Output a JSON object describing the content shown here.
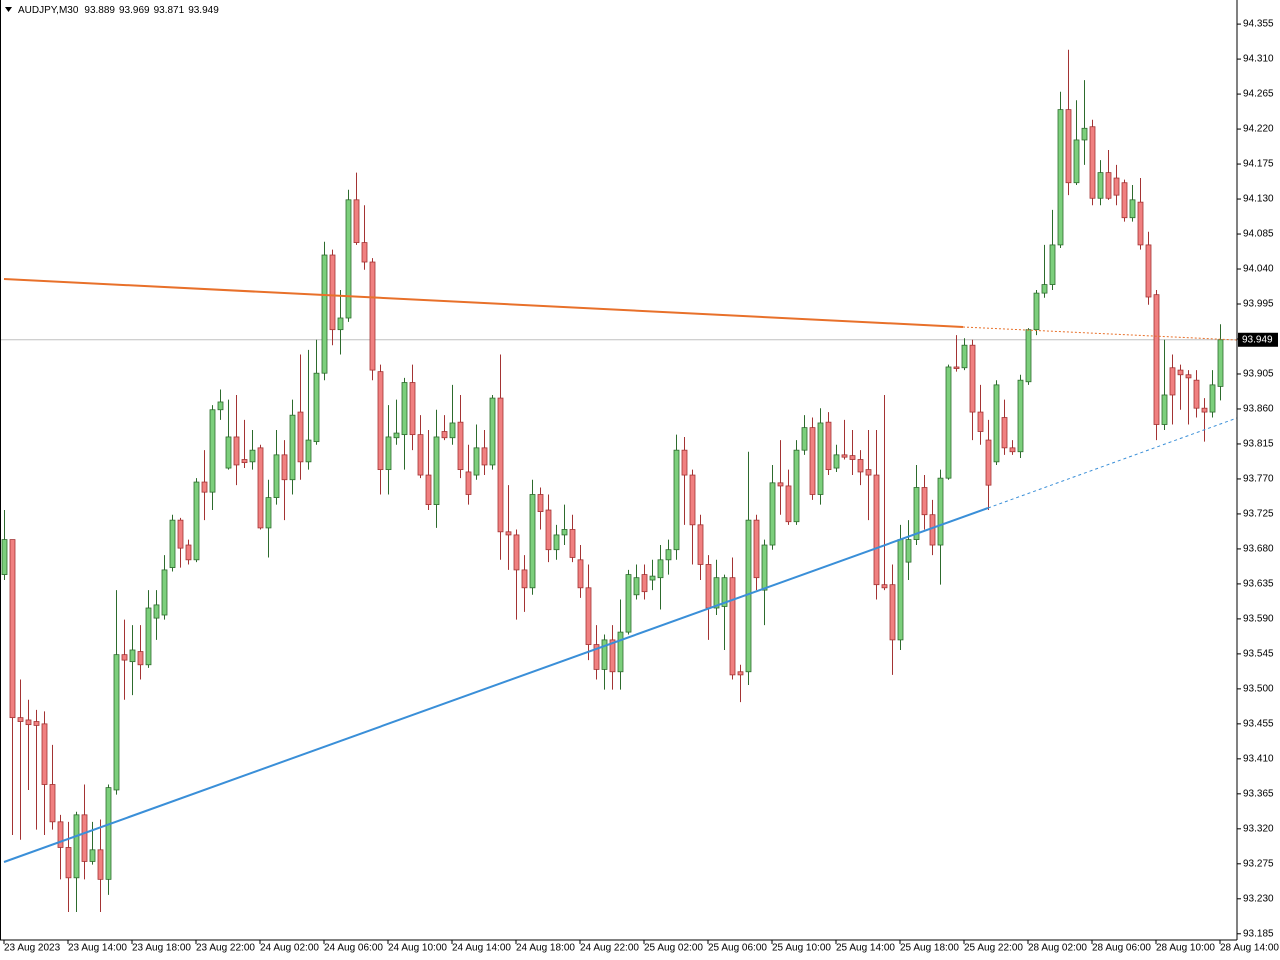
{
  "chart_data": {
    "type": "candlestick",
    "title": "AUDJPY,M30",
    "up_color": "#7ccf7c",
    "down_color": "#f08080",
    "ylim": [
      93.177,
      94.386
    ],
    "yticks": [
      94.355,
      {
        "value": 94.31,
        "label": "94.310"
      },
      94.265,
      {
        "value": 94.22,
        "label": "94.220"
      },
      94.175,
      {
        "value": 94.13,
        "label": "94.130"
      },
      94.085,
      {
        "value": 94.04,
        "label": "94.040"
      },
      93.995,
      {
        "value": 93.95,
        "label": "93.950"
      },
      93.905,
      {
        "value": 93.86,
        "label": "93.860"
      },
      93.815,
      {
        "value": 93.77,
        "label": "93.770"
      },
      93.725,
      {
        "value": 93.68,
        "label": "93.680"
      },
      93.635,
      {
        "value": 93.59,
        "label": "93.590"
      },
      93.545,
      {
        "value": 93.5,
        "label": "93.500"
      },
      93.455,
      {
        "value": 93.41,
        "label": "93.410"
      },
      93.365,
      {
        "value": 93.32,
        "label": "93.320"
      },
      93.275,
      {
        "value": 93.23,
        "label": "93.230"
      },
      93.185
    ],
    "categories": [
      "23 Aug 2023",
      null,
      null,
      null,
      null,
      null,
      null,
      null,
      "23 Aug 14:00",
      null,
      null,
      null,
      null,
      null,
      null,
      null,
      "23 Aug 18:00",
      null,
      null,
      null,
      null,
      null,
      null,
      null,
      "23 Aug 22:00",
      null,
      null,
      null,
      null,
      null,
      null,
      null,
      "24 Aug 02:00",
      null,
      null,
      null,
      null,
      null,
      null,
      null,
      "24 Aug 06:00",
      null,
      null,
      null,
      null,
      null,
      null,
      null,
      "24 Aug 10:00",
      null,
      null,
      null,
      null,
      null,
      null,
      null,
      "24 Aug 14:00",
      null,
      null,
      null,
      null,
      null,
      null,
      null,
      "24 Aug 18:00",
      null,
      null,
      null,
      null,
      null,
      null,
      null,
      "24 Aug 22:00",
      null,
      null,
      null,
      null,
      null,
      null,
      null,
      "25 Aug 02:00",
      null,
      null,
      null,
      null,
      null,
      null,
      null,
      "25 Aug 06:00",
      null,
      null,
      null,
      null,
      null,
      null,
      null,
      "25 Aug 10:00",
      null,
      null,
      null,
      null,
      null,
      null,
      null,
      "25 Aug 14:00",
      null,
      null,
      null,
      null,
      null,
      null,
      null,
      "25 Aug 18:00",
      null,
      null,
      null,
      null,
      null,
      null,
      null,
      "25 Aug 22:00",
      null,
      null,
      null,
      null,
      null,
      null,
      null,
      "28 Aug 02:00",
      null,
      null,
      null,
      null,
      null,
      null,
      null,
      "28 Aug 06:00",
      null,
      null,
      null,
      null,
      null,
      null,
      null,
      "28 Aug 10:00",
      null,
      null,
      null,
      null,
      null,
      null,
      null,
      "28 Aug 14:00"
    ],
    "open": [
      93.647,
      93.692,
      93.463,
      93.46,
      93.458,
      93.455,
      93.377,
      93.329,
      93.296,
      93.257,
      93.338,
      93.278,
      93.293,
      93.255,
      93.37,
      93.544,
      93.535,
      93.548,
      93.531,
      93.591,
      93.595,
      93.656,
      93.717,
      93.685,
      93.666,
      93.766,
      93.753,
      93.859,
      93.784,
      93.824,
      93.795,
      93.792,
      93.81,
      93.707,
      93.746,
      93.801,
      93.769,
      93.856,
      93.792,
      93.818,
      93.906,
      94.058,
      93.962,
      93.977,
      94.129,
      94.074,
      94.049,
      93.908,
      93.782,
      93.823,
      93.827,
      93.894,
      93.827,
      93.775,
      93.737,
      93.831,
      93.823,
      93.843,
      93.779,
      93.775,
      93.81,
      93.788,
      93.874,
      93.702,
      93.698,
      93.653,
      93.63,
      93.75,
      93.73,
      93.679,
      93.698,
      93.705,
      93.666,
      93.63,
      93.557,
      93.525,
      93.563,
      93.522,
      93.573,
      93.621,
      93.647,
      93.64,
      93.643,
      93.666,
      93.679,
      93.807,
      93.775,
      93.711,
      93.66,
      93.604,
      93.606,
      93.643,
      93.522,
      93.522,
      93.717,
      93.627,
      93.685,
      93.765,
      93.761,
      93.715,
      93.807,
      93.836,
      93.75,
      93.843,
      93.784,
      93.801,
      93.8,
      93.795,
      93.782,
      93.775,
      93.634,
      93.634,
      93.563,
      93.663,
      93.692,
      93.759,
      93.724,
      93.685,
      93.771,
      93.914,
      93.913,
      93.942,
      93.856,
      93.82,
      93.792,
      93.849,
      93.81,
      93.805,
      93.895,
      93.962,
      94.009,
      94.02,
      94.071,
      94.245,
      94.151,
      94.206,
      94.223,
      94.131,
      94.164,
      94.157,
      94.151,
      94.106,
      94.126,
      94.071,
      94.007,
      93.84,
      93.913,
      93.91,
      93.904,
      93.897,
      93.861,
      93.856,
      93.889
    ],
    "high": [
      93.73,
      93.692,
      93.512,
      93.486,
      93.473,
      93.471,
      93.428,
      93.338,
      93.329,
      93.342,
      93.377,
      93.329,
      93.332,
      93.377,
      93.627,
      93.589,
      93.582,
      93.582,
      93.627,
      93.627,
      93.672,
      93.724,
      93.72,
      93.692,
      93.771,
      93.807,
      93.865,
      93.885,
      93.872,
      93.878,
      93.846,
      93.833,
      93.814,
      93.769,
      93.833,
      93.82,
      93.872,
      93.93,
      93.936,
      93.949,
      94.075,
      94.065,
      94.013,
      94.142,
      94.164,
      94.122,
      94.054,
      93.917,
      93.865,
      93.872,
      93.9,
      93.917,
      93.852,
      93.833,
      93.859,
      93.852,
      93.891,
      93.878,
      93.814,
      93.84,
      93.833,
      93.878,
      93.93,
      93.762,
      93.705,
      93.672,
      93.769,
      93.759,
      93.75,
      93.711,
      93.737,
      93.724,
      93.685,
      93.66,
      93.582,
      93.57,
      93.582,
      93.615,
      93.653,
      93.66,
      93.66,
      93.666,
      93.685,
      93.692,
      93.827,
      93.824,
      93.782,
      93.724,
      93.672,
      93.666,
      93.647,
      93.669,
      93.531,
      93.805,
      93.724,
      93.692,
      93.788,
      93.82,
      93.782,
      93.82,
      93.852,
      93.849,
      93.861,
      93.856,
      93.814,
      93.846,
      93.833,
      93.807,
      93.833,
      93.833,
      93.878,
      93.66,
      93.711,
      93.717,
      93.788,
      93.775,
      93.743,
      93.782,
      93.917,
      93.955,
      93.951,
      93.949,
      93.891,
      93.846,
      93.897,
      93.872,
      93.82,
      93.904,
      93.964,
      94.013,
      94.071,
      94.116,
      94.268,
      94.322,
      94.257,
      94.283,
      94.232,
      94.18,
      94.193,
      94.174,
      94.155,
      94.148,
      94.157,
      94.088,
      94.013,
      93.949,
      93.93,
      93.917,
      93.91,
      93.91,
      93.874,
      93.91,
      93.969
    ],
    "low": [
      93.64,
      93.312,
      93.306,
      93.37,
      93.319,
      93.312,
      93.319,
      93.255,
      93.213,
      93.213,
      93.255,
      93.274,
      93.213,
      93.235,
      93.364,
      93.486,
      93.492,
      93.512,
      93.527,
      93.563,
      93.589,
      93.651,
      93.656,
      93.66,
      93.663,
      93.717,
      93.73,
      93.846,
      93.782,
      93.762,
      93.784,
      93.782,
      93.705,
      93.669,
      93.737,
      93.717,
      93.75,
      93.769,
      93.782,
      93.814,
      93.897,
      93.942,
      93.93,
      93.972,
      94.071,
      94.039,
      93.897,
      93.75,
      93.75,
      93.814,
      93.782,
      93.807,
      93.771,
      93.73,
      93.707,
      93.82,
      93.814,
      93.771,
      93.737,
      93.769,
      93.775,
      93.782,
      93.666,
      93.653,
      93.589,
      93.599,
      93.621,
      93.705,
      93.663,
      93.666,
      93.685,
      93.663,
      93.617,
      93.537,
      93.512,
      93.499,
      93.499,
      93.499,
      93.57,
      93.615,
      93.615,
      93.627,
      93.602,
      93.647,
      93.666,
      93.711,
      93.66,
      93.64,
      93.563,
      93.595,
      93.55,
      93.512,
      93.483,
      93.505,
      93.627,
      93.582,
      93.679,
      93.724,
      93.711,
      93.711,
      93.801,
      93.743,
      93.737,
      93.775,
      93.779,
      93.795,
      93.775,
      93.762,
      93.717,
      93.615,
      93.627,
      93.518,
      93.55,
      93.64,
      93.685,
      93.705,
      93.672,
      93.634,
      93.769,
      93.908,
      93.91,
      93.82,
      93.814,
      93.73,
      93.788,
      93.801,
      93.801,
      93.797,
      93.891,
      93.955,
      94.003,
      94.013,
      94.067,
      94.135,
      94.148,
      94.174,
      94.122,
      94.122,
      94.129,
      94.122,
      94.101,
      94.101,
      94.065,
      93.994,
      93.82,
      93.833,
      93.84,
      93.859,
      93.84,
      93.849,
      93.818,
      93.849,
      93.871
    ],
    "close": [
      93.692,
      93.463,
      93.458,
      93.454,
      93.453,
      93.377,
      93.329,
      93.296,
      93.257,
      93.338,
      93.278,
      93.293,
      93.255,
      93.373,
      93.544,
      93.537,
      93.55,
      93.531,
      93.604,
      93.608,
      93.653,
      93.717,
      93.681,
      93.666,
      93.766,
      93.753,
      93.859,
      93.869,
      93.824,
      93.788,
      93.791,
      93.807,
      93.707,
      93.746,
      93.801,
      93.769,
      93.852,
      93.792,
      93.82,
      93.906,
      94.058,
      93.962,
      93.977,
      94.129,
      94.074,
      94.049,
      93.91,
      93.782,
      93.824,
      93.829,
      93.894,
      93.827,
      93.775,
      93.737,
      93.824,
      93.823,
      93.842,
      93.782,
      93.75,
      93.81,
      93.788,
      93.874,
      93.702,
      93.698,
      93.653,
      93.63,
      93.75,
      93.728,
      93.679,
      93.698,
      93.705,
      93.669,
      93.63,
      93.557,
      93.525,
      93.563,
      93.522,
      93.573,
      93.647,
      93.643,
      93.625,
      93.645,
      93.666,
      93.679,
      93.807,
      93.775,
      93.711,
      93.66,
      93.604,
      93.643,
      93.643,
      93.518,
      93.518,
      93.717,
      93.643,
      93.685,
      93.765,
      93.761,
      93.715,
      93.807,
      93.836,
      93.75,
      93.842,
      93.782,
      93.801,
      93.798,
      93.795,
      93.779,
      93.775,
      93.634,
      93.63,
      93.563,
      93.692,
      93.692,
      93.759,
      93.724,
      93.685,
      93.771,
      93.914,
      93.912,
      93.942,
      93.856,
      93.831,
      93.762,
      93.891,
      93.81,
      93.805,
      93.897,
      93.962,
      94.009,
      94.02,
      94.071,
      94.245,
      94.151,
      94.206,
      94.221,
      94.131,
      94.164,
      94.131,
      94.135,
      94.106,
      94.129,
      94.071,
      94.004,
      93.84,
      93.878,
      93.878,
      93.904,
      93.9,
      93.861,
      93.856,
      93.891,
      93.949
    ]
  }
}
